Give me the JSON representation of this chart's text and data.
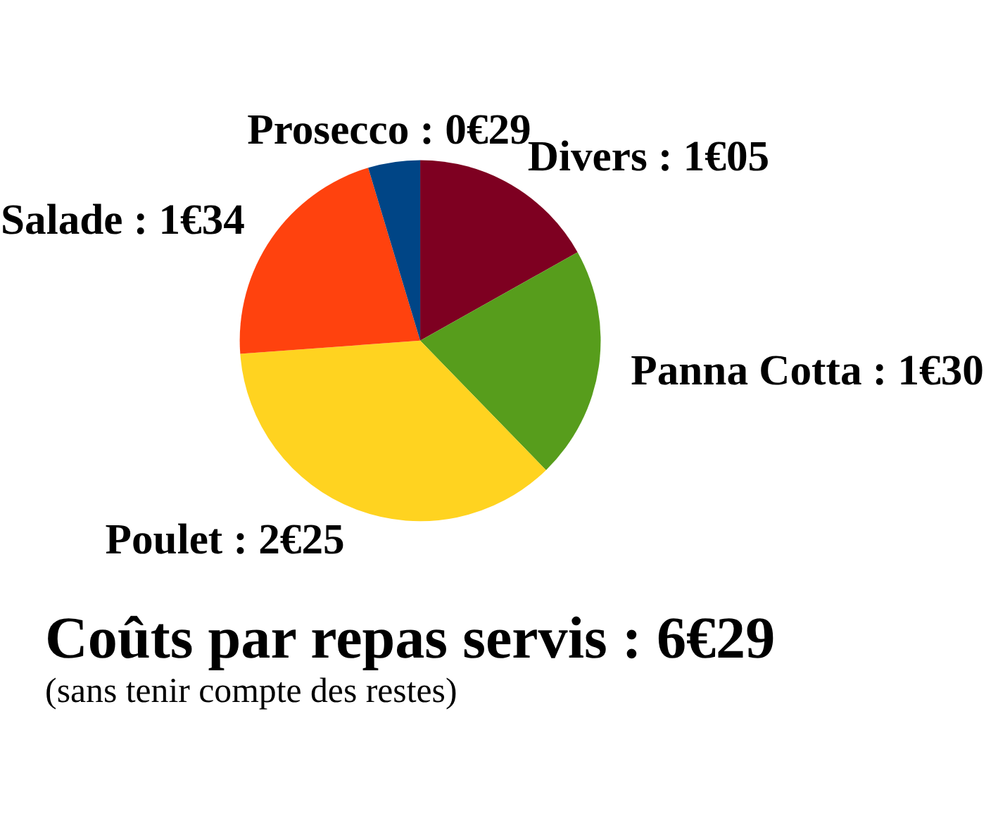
{
  "chart_data": {
    "type": "pie",
    "title": "Coûts par repas servis : 6€29",
    "subtitle": "(sans tenir compte des restes)",
    "categories": [
      "Divers",
      "Panna Cotta",
      "Poulet",
      "Salade",
      "Prosecco"
    ],
    "values": [
      1.05,
      1.3,
      2.25,
      1.34,
      0.29
    ],
    "value_labels": [
      "1€05",
      "1€30",
      "2€25",
      "1€34",
      "0€29"
    ],
    "colors": [
      "#7e0021",
      "#579d1c",
      "#ffd320",
      "#ff420e",
      "#004586"
    ],
    "legend": false
  }
}
